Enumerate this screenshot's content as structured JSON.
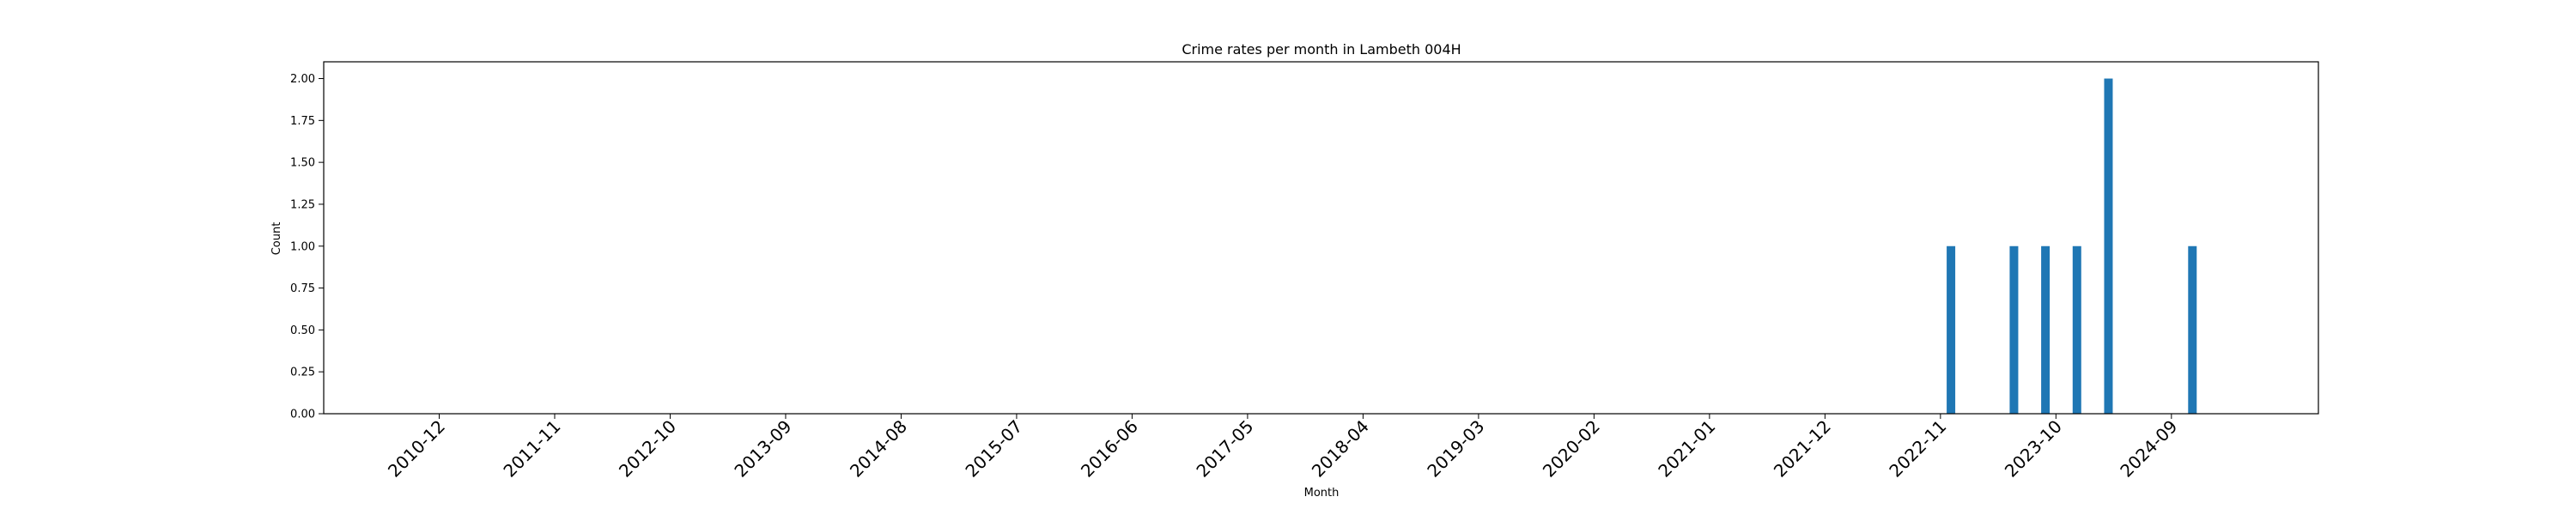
{
  "chart_data": {
    "type": "bar",
    "title": "Crime rates per month in Lambeth 004H",
    "xlabel": "Month",
    "ylabel": "Count",
    "ylim": [
      0,
      2.1
    ],
    "yticks": [
      "0.00",
      "0.25",
      "0.50",
      "0.75",
      "1.00",
      "1.25",
      "1.50",
      "1.75",
      "2.00"
    ],
    "xtick_labels": [
      "2010-12",
      "2011-11",
      "2012-10",
      "2013-09",
      "2014-08",
      "2015-07",
      "2016-06",
      "2017-05",
      "2018-04",
      "2019-03",
      "2020-02",
      "2021-01",
      "2021-12",
      "2022-11",
      "2023-10",
      "2024-09"
    ],
    "categories": [
      "2022-12",
      "2023-06",
      "2023-09",
      "2023-12",
      "2024-03",
      "2024-11"
    ],
    "values": [
      1,
      1,
      1,
      1,
      2,
      1
    ],
    "x_range": [
      "2010-01",
      "2025-11"
    ],
    "grid": false,
    "bar_color": "#1f77b4"
  }
}
